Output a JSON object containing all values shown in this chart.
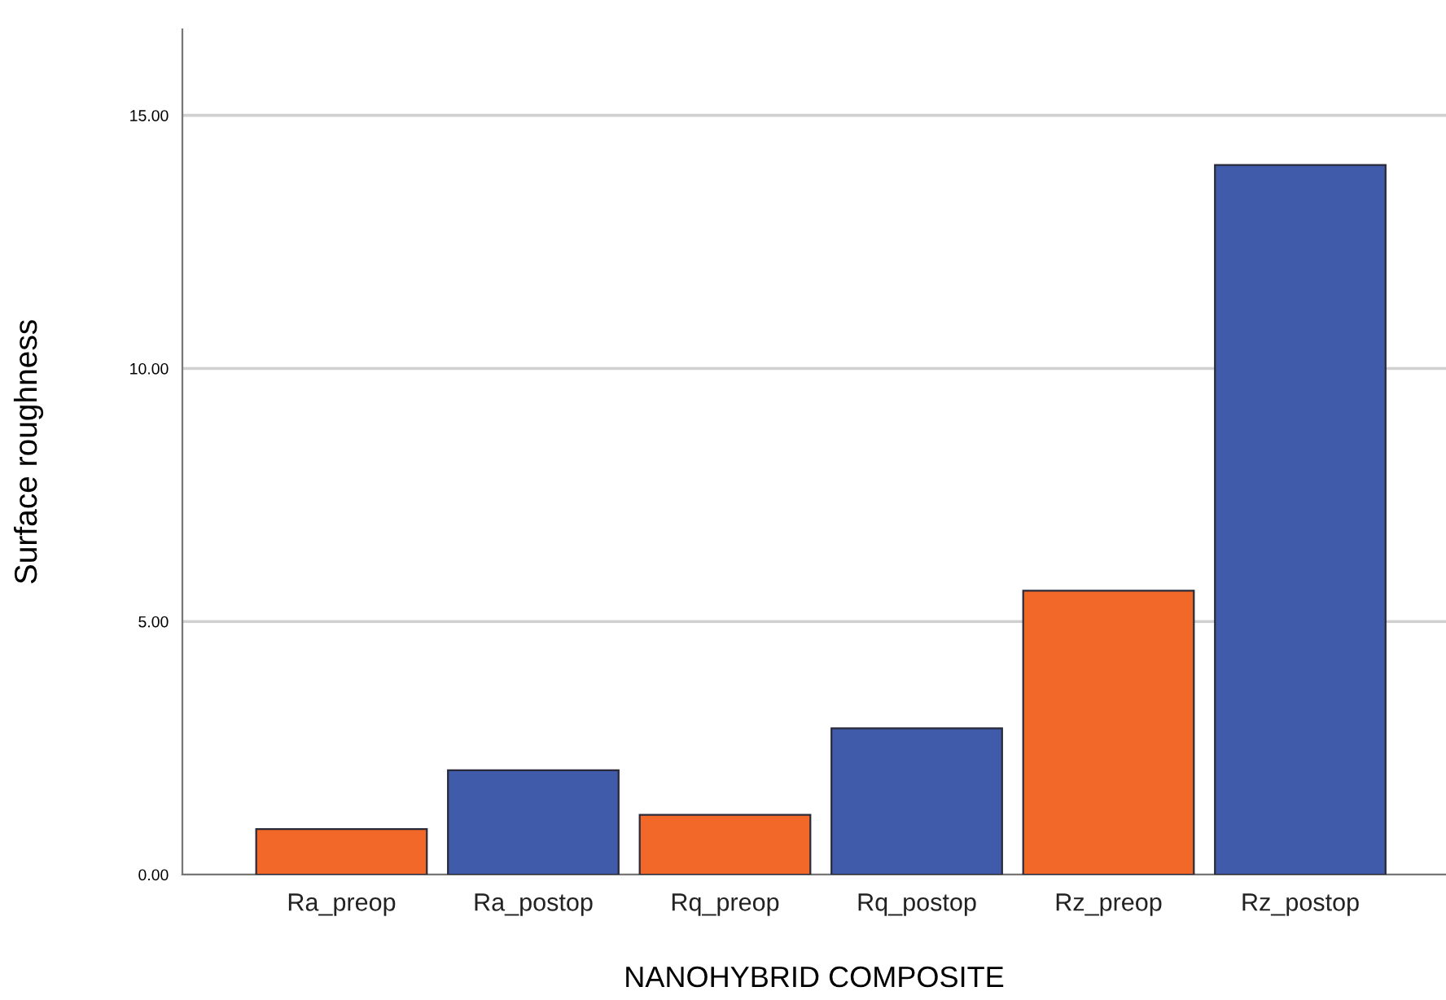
{
  "chart_data": {
    "type": "bar",
    "xlabel": "NANOHYBRID COMPOSITE",
    "ylabel": "Surface roughness",
    "categories": [
      "Ra_preop",
      "Ra_postop",
      "Rq_preop",
      "Rq_postop",
      "Rz_preop",
      "Rz_postop"
    ],
    "values": [
      0.9,
      2.06,
      1.18,
      2.89,
      5.61,
      14.02
    ],
    "colors": [
      "#f26829",
      "#3f5ba9",
      "#f26829",
      "#3f5ba9",
      "#f26829",
      "#3f5ba9"
    ],
    "ylim": [
      0,
      16.7
    ],
    "yticks": [
      {
        "value": 0,
        "label": "0.00"
      },
      {
        "value": 5,
        "label": "5.00"
      },
      {
        "value": 10,
        "label": "10.00"
      },
      {
        "value": 15,
        "label": "15.00"
      }
    ],
    "grid": "y"
  }
}
